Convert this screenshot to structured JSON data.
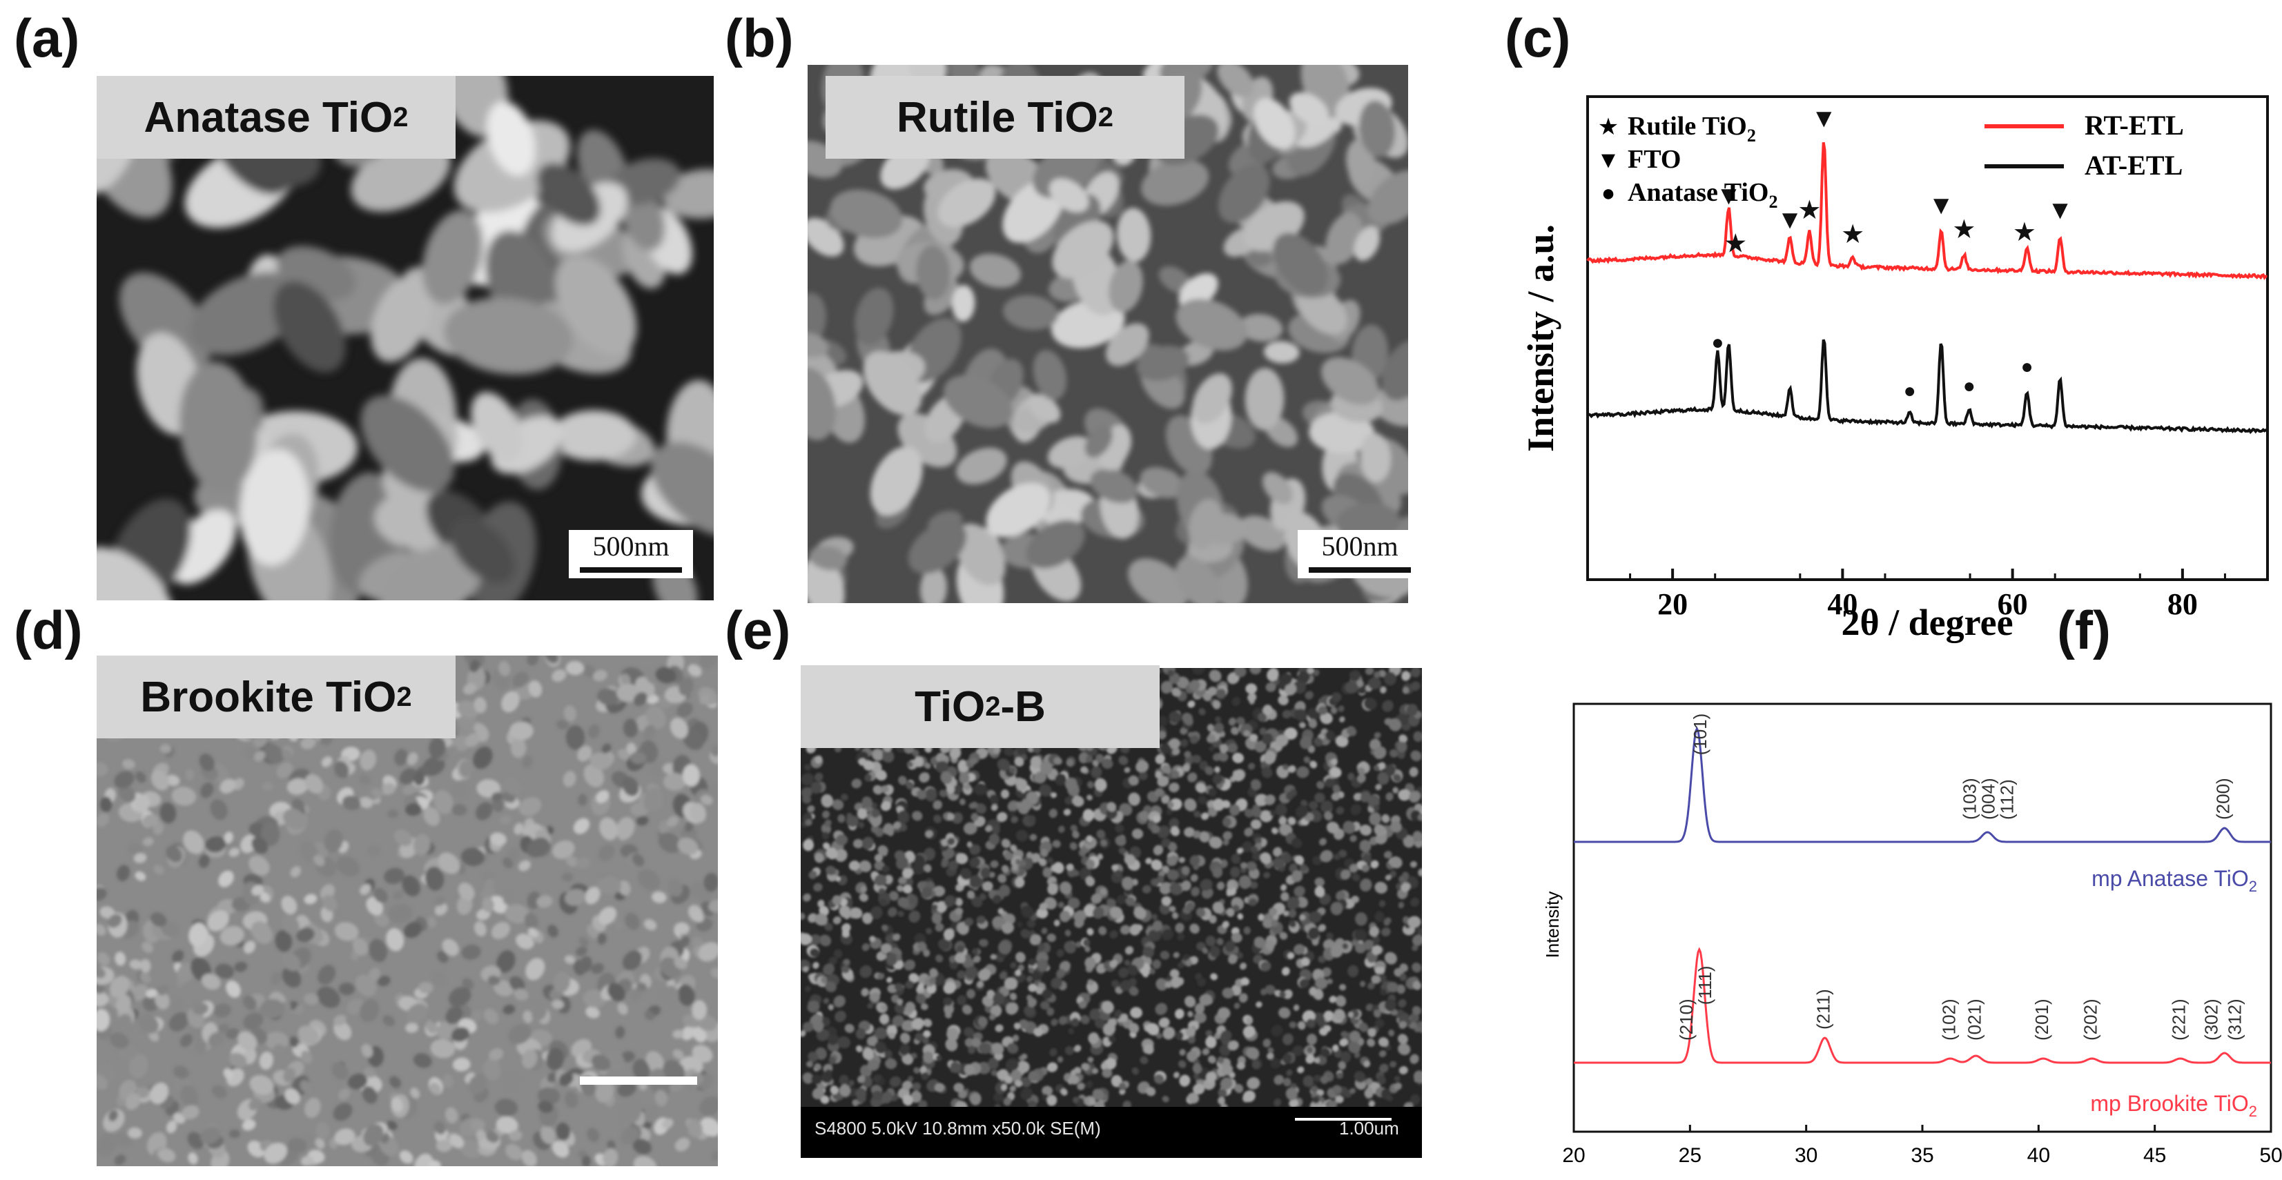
{
  "panels": {
    "a": {
      "letter": "(a)",
      "label_main": "Anatase TiO",
      "label_sub": "2",
      "scale": "500nm"
    },
    "b": {
      "letter": "(b)",
      "label_main": "Rutile TiO",
      "label_sub": "2",
      "scale": "500nm"
    },
    "c": {
      "letter": "(c)"
    },
    "d": {
      "letter": "(d)",
      "label_main": "Brookite TiO",
      "label_sub": "2"
    },
    "e": {
      "letter": "(e)",
      "label_pre": "TiO",
      "label_sub": "2",
      "label_post": "-B",
      "footer_left": "S4800 5.0kV 10.8mm x50.0k SE(M)",
      "footer_right": "1.00um"
    },
    "f": {
      "letter": "(f)"
    }
  },
  "chart_data": [
    {
      "type": "line",
      "panel": "c",
      "xlabel": "2θ / degree",
      "ylabel": "Intensity / a.u.",
      "xlim": [
        10,
        90
      ],
      "xticks": [
        20,
        40,
        60,
        80
      ],
      "marker_legend": [
        {
          "symbol": "★",
          "text": "Rutile TiO",
          "sub": "2"
        },
        {
          "symbol": "▼",
          "text": "FTO",
          "sub": ""
        },
        {
          "symbol": "●",
          "text": "Anatase TiO",
          "sub": "2"
        }
      ],
      "series": [
        {
          "name": "RT-ETL",
          "color": "#ff2a2a",
          "baseline": 0.66,
          "peaks": [
            [
              26.6,
              0.1
            ],
            [
              33.8,
              0.05
            ],
            [
              36.1,
              0.07
            ],
            [
              37.8,
              0.26
            ],
            [
              41.2,
              0.02
            ],
            [
              51.6,
              0.08
            ],
            [
              54.3,
              0.03
            ],
            [
              61.7,
              0.05
            ],
            [
              65.6,
              0.07
            ]
          ],
          "marker_positions": [
            {
              "x": 26.6,
              "symbol": "▼"
            },
            {
              "x": 27.4,
              "symbol": "★"
            },
            {
              "x": 33.8,
              "symbol": "▼"
            },
            {
              "x": 36.1,
              "symbol": "★"
            },
            {
              "x": 37.8,
              "symbol": "▼"
            },
            {
              "x": 41.2,
              "symbol": "★"
            },
            {
              "x": 51.6,
              "symbol": "▼"
            },
            {
              "x": 54.3,
              "symbol": "★"
            },
            {
              "x": 61.4,
              "symbol": "★"
            },
            {
              "x": 65.6,
              "symbol": "▼"
            }
          ]
        },
        {
          "name": "AT-ETL",
          "color": "#111111",
          "baseline": 0.34,
          "peaks": [
            [
              25.3,
              0.12
            ],
            [
              26.6,
              0.14
            ],
            [
              33.8,
              0.06
            ],
            [
              37.8,
              0.17
            ],
            [
              47.9,
              0.02
            ],
            [
              51.6,
              0.17
            ],
            [
              54.9,
              0.03
            ],
            [
              61.7,
              0.07
            ],
            [
              65.6,
              0.1
            ]
          ],
          "marker_positions": [
            {
              "x": 25.3,
              "symbol": "●"
            },
            {
              "x": 47.9,
              "symbol": "●"
            },
            {
              "x": 54.9,
              "symbol": "●"
            },
            {
              "x": 61.7,
              "symbol": "●"
            }
          ]
        }
      ]
    },
    {
      "type": "line",
      "panel": "f",
      "ylabel": "Intensity",
      "xlim": [
        20,
        50
      ],
      "xticks": [
        20,
        25,
        30,
        35,
        40,
        45,
        50
      ],
      "series": [
        {
          "name": "mp Anatase TiO2",
          "label_main": "mp Anatase TiO",
          "label_sub": "2",
          "color": "#4a4aa8",
          "peaks": [
            [
              25.3,
              0.82
            ],
            [
              37.8,
              0.07
            ],
            [
              48.0,
              0.1
            ]
          ],
          "hkl": [
            {
              "x": 25.5,
              "text": "(101)"
            },
            {
              "x": 37.1,
              "text": "(103)"
            },
            {
              "x": 37.9,
              "text": "(004)"
            },
            {
              "x": 38.7,
              "text": "(112)"
            },
            {
              "x": 48.0,
              "text": "(200)"
            }
          ]
        },
        {
          "name": "mp Brookite TiO2",
          "label_main": "mp Brookite TiO",
          "label_sub": "2",
          "color": "#ff3b4a",
          "peaks": [
            [
              25.4,
              0.82
            ],
            [
              30.8,
              0.18
            ],
            [
              36.2,
              0.03
            ],
            [
              37.3,
              0.05
            ],
            [
              40.2,
              0.03
            ],
            [
              42.3,
              0.03
            ],
            [
              46.1,
              0.03
            ],
            [
              48.0,
              0.07
            ]
          ],
          "hkl": [
            {
              "x": 24.9,
              "text": "(210)"
            },
            {
              "x": 25.7,
              "text": "(111)"
            },
            {
              "x": 30.8,
              "text": "(211)"
            },
            {
              "x": 36.2,
              "text": "(102)"
            },
            {
              "x": 37.3,
              "text": "(021)"
            },
            {
              "x": 40.2,
              "text": "(201)"
            },
            {
              "x": 42.3,
              "text": "(202)"
            },
            {
              "x": 46.1,
              "text": "(221)"
            },
            {
              "x": 47.5,
              "text": "(302)"
            },
            {
              "x": 48.5,
              "text": "(312)"
            }
          ]
        }
      ]
    }
  ]
}
